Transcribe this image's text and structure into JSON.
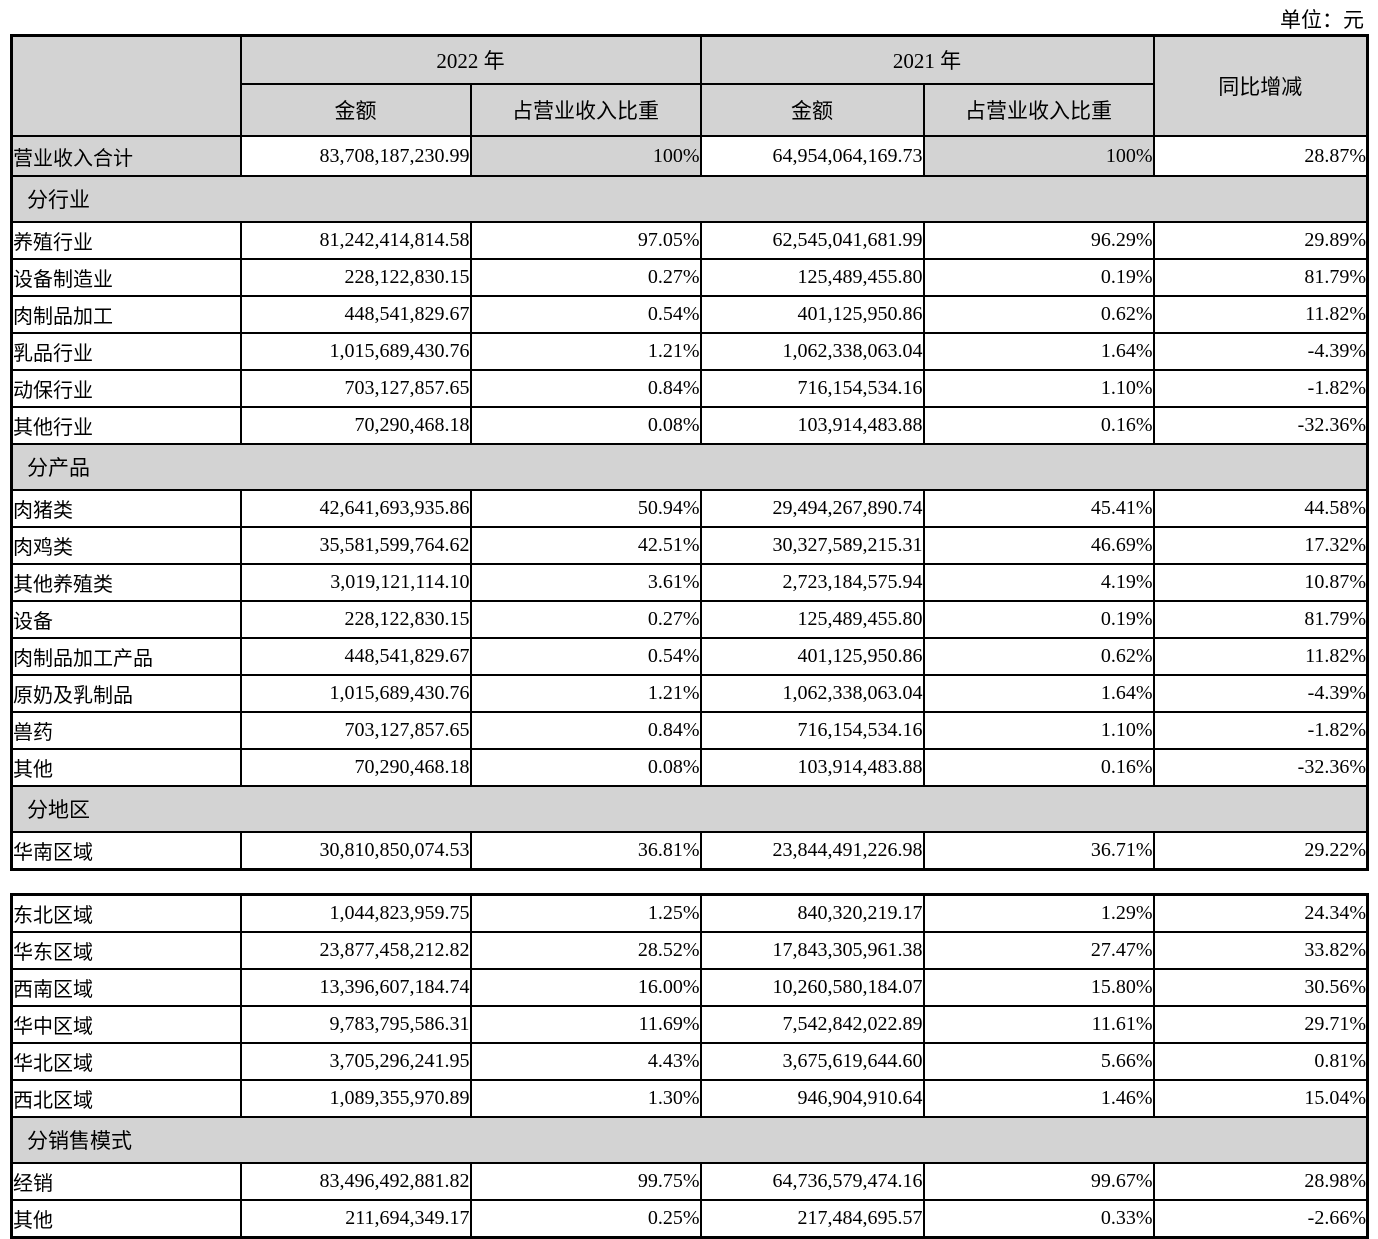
{
  "page": {
    "unit_label": "单位：元"
  },
  "header": {
    "year_2022": "2022 年",
    "year_2021": "2021 年",
    "amount": "金额",
    "ratio": "占营业收入比重",
    "yoy": "同比增减"
  },
  "tables": [
    {
      "rows": [
        {
          "type": "total",
          "label": "营业收入合计",
          "cells": [
            "83,708,187,230.99",
            "100%",
            "64,954,064,169.73",
            "100%",
            "28.87%"
          ]
        },
        {
          "type": "section",
          "label": "分行业"
        },
        {
          "type": "data",
          "label": "养殖行业",
          "cells": [
            "81,242,414,814.58",
            "97.05%",
            "62,545,041,681.99",
            "96.29%",
            "29.89%"
          ]
        },
        {
          "type": "data",
          "label": "设备制造业",
          "cells": [
            "228,122,830.15",
            "0.27%",
            "125,489,455.80",
            "0.19%",
            "81.79%"
          ]
        },
        {
          "type": "data",
          "label": "肉制品加工",
          "cells": [
            "448,541,829.67",
            "0.54%",
            "401,125,950.86",
            "0.62%",
            "11.82%"
          ]
        },
        {
          "type": "data",
          "label": "乳品行业",
          "cells": [
            "1,015,689,430.76",
            "1.21%",
            "1,062,338,063.04",
            "1.64%",
            "-4.39%"
          ]
        },
        {
          "type": "data",
          "label": "动保行业",
          "cells": [
            "703,127,857.65",
            "0.84%",
            "716,154,534.16",
            "1.10%",
            "-1.82%"
          ]
        },
        {
          "type": "data",
          "label": "其他行业",
          "cells": [
            "70,290,468.18",
            "0.08%",
            "103,914,483.88",
            "0.16%",
            "-32.36%"
          ]
        },
        {
          "type": "section",
          "label": "分产品"
        },
        {
          "type": "data",
          "label": "肉猪类",
          "cells": [
            "42,641,693,935.86",
            "50.94%",
            "29,494,267,890.74",
            "45.41%",
            "44.58%"
          ]
        },
        {
          "type": "data",
          "label": "肉鸡类",
          "cells": [
            "35,581,599,764.62",
            "42.51%",
            "30,327,589,215.31",
            "46.69%",
            "17.32%"
          ]
        },
        {
          "type": "data",
          "label": "其他养殖类",
          "cells": [
            "3,019,121,114.10",
            "3.61%",
            "2,723,184,575.94",
            "4.19%",
            "10.87%"
          ]
        },
        {
          "type": "data",
          "label": "设备",
          "cells": [
            "228,122,830.15",
            "0.27%",
            "125,489,455.80",
            "0.19%",
            "81.79%"
          ]
        },
        {
          "type": "data",
          "label": "肉制品加工产品",
          "cells": [
            "448,541,829.67",
            "0.54%",
            "401,125,950.86",
            "0.62%",
            "11.82%"
          ]
        },
        {
          "type": "data",
          "label": "原奶及乳制品",
          "cells": [
            "1,015,689,430.76",
            "1.21%",
            "1,062,338,063.04",
            "1.64%",
            "-4.39%"
          ]
        },
        {
          "type": "data",
          "label": "兽药",
          "cells": [
            "703,127,857.65",
            "0.84%",
            "716,154,534.16",
            "1.10%",
            "-1.82%"
          ]
        },
        {
          "type": "data",
          "label": "其他",
          "cells": [
            "70,290,468.18",
            "0.08%",
            "103,914,483.88",
            "0.16%",
            "-32.36%"
          ]
        },
        {
          "type": "section",
          "label": "分地区"
        },
        {
          "type": "data",
          "label": "华南区域",
          "cells": [
            "30,810,850,074.53",
            "36.81%",
            "23,844,491,226.98",
            "36.71%",
            "29.22%"
          ]
        }
      ]
    },
    {
      "rows": [
        {
          "type": "data",
          "label": "东北区域",
          "cells": [
            "1,044,823,959.75",
            "1.25%",
            "840,320,219.17",
            "1.29%",
            "24.34%"
          ]
        },
        {
          "type": "data",
          "label": "华东区域",
          "cells": [
            "23,877,458,212.82",
            "28.52%",
            "17,843,305,961.38",
            "27.47%",
            "33.82%"
          ]
        },
        {
          "type": "data",
          "label": "西南区域",
          "cells": [
            "13,396,607,184.74",
            "16.00%",
            "10,260,580,184.07",
            "15.80%",
            "30.56%"
          ]
        },
        {
          "type": "data",
          "label": "华中区域",
          "cells": [
            "9,783,795,586.31",
            "11.69%",
            "7,542,842,022.89",
            "11.61%",
            "29.71%"
          ]
        },
        {
          "type": "data",
          "label": "华北区域",
          "cells": [
            "3,705,296,241.95",
            "4.43%",
            "3,675,619,644.60",
            "5.66%",
            "0.81%"
          ]
        },
        {
          "type": "data",
          "label": "西北区域",
          "cells": [
            "1,089,355,970.89",
            "1.30%",
            "946,904,910.64",
            "1.46%",
            "15.04%"
          ]
        },
        {
          "type": "section",
          "label": "分销售模式"
        },
        {
          "type": "data",
          "label": "经销",
          "cells": [
            "83,496,492,881.82",
            "99.75%",
            "64,736,579,474.16",
            "99.67%",
            "28.98%"
          ]
        },
        {
          "type": "data",
          "label": "其他",
          "cells": [
            "211,694,349.17",
            "0.25%",
            "217,484,695.57",
            "0.33%",
            "-2.66%"
          ]
        }
      ]
    }
  ]
}
